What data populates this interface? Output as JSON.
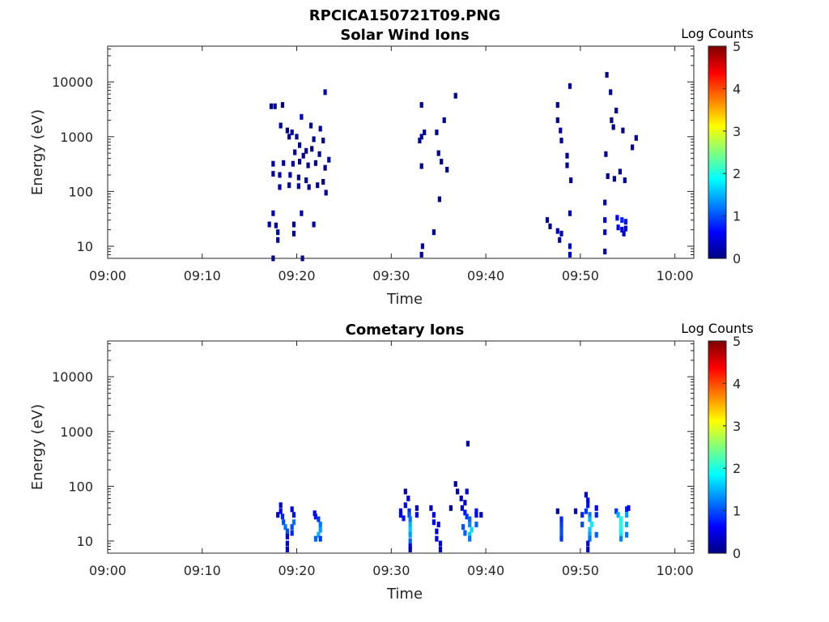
{
  "figure": {
    "title": "RPCICA150721T09.PNG"
  },
  "colors": {
    "colormap": [
      "#00007f",
      "#0000ff",
      "#007fff",
      "#00ffff",
      "#7fff7f",
      "#ffff00",
      "#ff7f00",
      "#ff0000",
      "#7f0000"
    ],
    "axis": "#262626",
    "background": "#ffffff"
  },
  "chart_data": [
    {
      "type": "heatmap",
      "title": "Solar Wind Ions",
      "xlabel": "Time",
      "ylabel": "Energy (eV)",
      "x_ticks": [
        "09:00",
        "09:10",
        "09:20",
        "09:30",
        "09:40",
        "09:50",
        "10:00"
      ],
      "y_ticks": [
        "10",
        "100",
        "1000",
        "10000"
      ],
      "y_scale": "log",
      "xlim_minutes": [
        0,
        62
      ],
      "ylim": [
        6,
        45000
      ],
      "colorbar": {
        "title": "Log Counts",
        "ticks": [
          "0",
          "1",
          "2",
          "3",
          "4",
          "5"
        ],
        "range": [
          0,
          5
        ]
      },
      "cells": [
        [
          17.3,
          3600,
          0.1
        ],
        [
          17.7,
          3600,
          0.1
        ],
        [
          18.5,
          3800,
          0.1
        ],
        [
          20.5,
          2300,
          0.3
        ],
        [
          23.0,
          6500,
          0.2
        ],
        [
          18.3,
          1600,
          0.1
        ],
        [
          19.0,
          1300,
          0.1
        ],
        [
          19.5,
          1200,
          0.2
        ],
        [
          20.0,
          1000,
          0.1
        ],
        [
          21.5,
          1600,
          0.1
        ],
        [
          22.5,
          1400,
          0.1
        ],
        [
          19.2,
          1000,
          0.1
        ],
        [
          20.3,
          700,
          0.1
        ],
        [
          21.0,
          550,
          0.1
        ],
        [
          21.8,
          900,
          0.1
        ],
        [
          22.8,
          850,
          0.1
        ],
        [
          19.8,
          520,
          0.1
        ],
        [
          20.7,
          450,
          0.1
        ],
        [
          21.6,
          600,
          0.1
        ],
        [
          22.4,
          480,
          0.1
        ],
        [
          23.4,
          380,
          0.1
        ],
        [
          17.5,
          320,
          0.2
        ],
        [
          18.6,
          330,
          0.2
        ],
        [
          19.6,
          320,
          0.2
        ],
        [
          20.3,
          350,
          0.1
        ],
        [
          21.2,
          300,
          0.1
        ],
        [
          22.0,
          330,
          0.1
        ],
        [
          23.0,
          270,
          0.1
        ],
        [
          17.5,
          210,
          0.1
        ],
        [
          18.2,
          200,
          0.2
        ],
        [
          19.3,
          200,
          0.1
        ],
        [
          20.2,
          180,
          0.1
        ],
        [
          21.0,
          160,
          0.1
        ],
        [
          22.8,
          150,
          0.1
        ],
        [
          18.2,
          120,
          0.2
        ],
        [
          19.2,
          130,
          0.1
        ],
        [
          20.2,
          125,
          0.2
        ],
        [
          21.3,
          120,
          0.2
        ],
        [
          22.2,
          130,
          0.1
        ],
        [
          23.1,
          95,
          0.2
        ],
        [
          17.5,
          40,
          0.3
        ],
        [
          20.5,
          40,
          0.2
        ],
        [
          17.1,
          25,
          0.2
        ],
        [
          17.8,
          24,
          0.2
        ],
        [
          19.7,
          25,
          0.2
        ],
        [
          21.8,
          25,
          0.2
        ],
        [
          18.0,
          18,
          0.2
        ],
        [
          18.0,
          13,
          0.2
        ],
        [
          19.7,
          17,
          0.2
        ],
        [
          17.5,
          6,
          0.1
        ],
        [
          20.6,
          6,
          0.2
        ],
        [
          33.2,
          3800,
          0.1
        ],
        [
          33.5,
          1200,
          0.1
        ],
        [
          33.0,
          850,
          0.1
        ],
        [
          33.2,
          1000,
          0.2
        ],
        [
          34.8,
          1200,
          0.1
        ],
        [
          35.0,
          500,
          0.1
        ],
        [
          35.3,
          350,
          0.1
        ],
        [
          35.9,
          250,
          0.1
        ],
        [
          33.2,
          290,
          0.1
        ],
        [
          36.8,
          5600,
          0.1
        ],
        [
          35.6,
          2000,
          0.1
        ],
        [
          35.1,
          72,
          0.1
        ],
        [
          33.3,
          10,
          0.2
        ],
        [
          34.5,
          18,
          0.1
        ],
        [
          33.2,
          7,
          0.2
        ],
        [
          47.6,
          3800,
          0.1
        ],
        [
          48.9,
          8400,
          0.1
        ],
        [
          47.6,
          2000,
          0.1
        ],
        [
          47.9,
          1300,
          0.1
        ],
        [
          48.0,
          850,
          0.1
        ],
        [
          48.6,
          450,
          0.1
        ],
        [
          48.6,
          300,
          0.1
        ],
        [
          49.0,
          160,
          0.1
        ],
        [
          48.9,
          40,
          0.2
        ],
        [
          46.5,
          30,
          0.1
        ],
        [
          46.8,
          23,
          0.1
        ],
        [
          47.6,
          19,
          0.3
        ],
        [
          48.0,
          17,
          0.3
        ],
        [
          47.8,
          13,
          0.2
        ],
        [
          48.9,
          10,
          0.3
        ],
        [
          48.9,
          7,
          0.3
        ],
        [
          52.8,
          13500,
          0.1
        ],
        [
          53.2,
          6500,
          0.1
        ],
        [
          53.8,
          3000,
          0.1
        ],
        [
          53.3,
          2000,
          0.1
        ],
        [
          53.5,
          1500,
          0.1
        ],
        [
          54.5,
          1300,
          0.1
        ],
        [
          55.9,
          950,
          0.1
        ],
        [
          55.5,
          640,
          0.1
        ],
        [
          52.7,
          480,
          0.1
        ],
        [
          52.9,
          190,
          0.1
        ],
        [
          53.6,
          170,
          0.1
        ],
        [
          54.2,
          230,
          0.1
        ],
        [
          54.7,
          160,
          0.1
        ],
        [
          52.6,
          63,
          0.2
        ],
        [
          52.6,
          30,
          0.4
        ],
        [
          53.9,
          33,
          0.6
        ],
        [
          54.4,
          30,
          0.8
        ],
        [
          54.8,
          28,
          0.7
        ],
        [
          54.0,
          22,
          0.5
        ],
        [
          54.4,
          20,
          0.4
        ],
        [
          54.8,
          21,
          0.5
        ],
        [
          54.6,
          17,
          0.4
        ],
        [
          52.6,
          18,
          0.3
        ],
        [
          52.6,
          8,
          0.2
        ]
      ]
    },
    {
      "type": "heatmap",
      "title": "Cometary Ions",
      "xlabel": "Time",
      "ylabel": "Energy (eV)",
      "x_ticks": [
        "09:00",
        "09:10",
        "09:20",
        "09:30",
        "09:40",
        "09:50",
        "10:00"
      ],
      "y_ticks": [
        "10",
        "100",
        "1000",
        "10000"
      ],
      "y_scale": "log",
      "xlim_minutes": [
        0,
        62
      ],
      "ylim": [
        6,
        45000
      ],
      "colorbar": {
        "title": "Log Counts",
        "ticks": [
          "0",
          "1",
          "2",
          "3",
          "4",
          "5"
        ],
        "range": [
          0,
          5
        ]
      },
      "cells": [
        [
          18.3,
          45,
          0.4
        ],
        [
          18.3,
          35,
          0.6
        ],
        [
          18.5,
          28,
          0.8
        ],
        [
          18.6,
          22,
          1.0
        ],
        [
          18.8,
          18,
          1.2
        ],
        [
          19.0,
          15,
          1.0
        ],
        [
          19.0,
          12,
          0.6
        ],
        [
          19.0,
          9,
          0.5
        ],
        [
          19.0,
          7,
          0.5
        ],
        [
          19.5,
          38,
          0.5
        ],
        [
          19.7,
          30,
          0.7
        ],
        [
          19.7,
          22,
          1.2
        ],
        [
          19.5,
          18,
          1.0
        ],
        [
          19.5,
          14,
          0.8
        ],
        [
          18.0,
          30,
          0.4
        ],
        [
          21.9,
          32,
          0.5
        ],
        [
          22.0,
          28,
          0.7
        ],
        [
          22.3,
          25,
          0.9
        ],
        [
          22.5,
          20,
          1.2
        ],
        [
          22.5,
          16,
          1.4
        ],
        [
          22.3,
          13,
          1.5
        ],
        [
          22.0,
          11,
          1.1
        ],
        [
          22.5,
          11,
          0.9
        ],
        [
          31.5,
          80,
          0.2
        ],
        [
          31.8,
          60,
          0.4
        ],
        [
          31.5,
          45,
          0.6
        ],
        [
          31.9,
          35,
          0.8
        ],
        [
          31.9,
          30,
          1.0
        ],
        [
          32.0,
          25,
          1.2
        ],
        [
          32.0,
          20,
          1.5
        ],
        [
          32.0,
          16,
          1.6
        ],
        [
          32.0,
          13,
          1.4
        ],
        [
          32.0,
          10,
          1.1
        ],
        [
          32.0,
          8,
          0.5
        ],
        [
          32.0,
          7,
          0.3
        ],
        [
          31.0,
          35,
          0.5
        ],
        [
          31.0,
          30,
          0.6
        ],
        [
          31.3,
          26,
          0.7
        ],
        [
          32.7,
          40,
          0.4
        ],
        [
          32.7,
          30,
          0.6
        ],
        [
          34.2,
          40,
          0.3
        ],
        [
          34.5,
          30,
          0.5
        ],
        [
          34.5,
          22,
          0.6
        ],
        [
          35.0,
          20,
          0.5
        ],
        [
          34.8,
          15,
          0.5
        ],
        [
          34.8,
          11,
          0.5
        ],
        [
          35.2,
          9,
          0.4
        ],
        [
          35.2,
          7,
          0.3
        ],
        [
          36.8,
          110,
          0.2
        ],
        [
          37.0,
          80,
          0.3
        ],
        [
          37.4,
          60,
          0.3
        ],
        [
          37.8,
          50,
          0.3
        ],
        [
          38.0,
          80,
          0.4
        ],
        [
          37.5,
          40,
          0.5
        ],
        [
          37.8,
          33,
          0.7
        ],
        [
          38.0,
          28,
          0.9
        ],
        [
          38.3,
          25,
          1.1
        ],
        [
          38.3,
          20,
          1.3
        ],
        [
          38.5,
          16,
          1.7
        ],
        [
          38.3,
          13,
          1.6
        ],
        [
          38.3,
          11,
          1.2
        ],
        [
          37.6,
          18,
          1.0
        ],
        [
          37.8,
          14,
          1.1
        ],
        [
          39.0,
          35,
          0.7
        ],
        [
          39.0,
          30,
          0.6
        ],
        [
          39.0,
          20,
          1.1
        ],
        [
          39.5,
          30,
          0.3
        ],
        [
          38.1,
          600,
          0.2
        ],
        [
          36.3,
          40,
          0.2
        ],
        [
          47.6,
          35,
          0.2
        ],
        [
          48.0,
          25,
          0.8
        ],
        [
          48.0,
          20,
          0.9
        ],
        [
          48.0,
          16,
          1.0
        ],
        [
          48.0,
          13,
          1.0
        ],
        [
          48.0,
          11,
          0.9
        ],
        [
          49.5,
          35,
          0.3
        ],
        [
          50.6,
          70,
          0.3
        ],
        [
          50.8,
          55,
          0.5
        ],
        [
          50.8,
          45,
          0.7
        ],
        [
          50.6,
          35,
          0.9
        ],
        [
          51.0,
          30,
          1.2
        ],
        [
          51.0,
          25,
          1.5
        ],
        [
          51.2,
          20,
          1.8
        ],
        [
          51.0,
          16,
          1.6
        ],
        [
          51.0,
          13,
          1.4
        ],
        [
          51.0,
          11,
          1.2
        ],
        [
          50.8,
          9,
          0.4
        ],
        [
          50.8,
          7,
          0.3
        ],
        [
          50.2,
          30,
          0.8
        ],
        [
          50.2,
          20,
          1.0
        ],
        [
          51.7,
          40,
          0.6
        ],
        [
          51.7,
          30,
          0.8
        ],
        [
          51.7,
          13,
          1.1
        ],
        [
          53.8,
          35,
          0.9
        ],
        [
          54.0,
          30,
          1.5
        ],
        [
          54.3,
          25,
          1.9
        ],
        [
          54.3,
          20,
          2.0
        ],
        [
          54.3,
          16,
          1.9
        ],
        [
          54.3,
          13,
          1.8
        ],
        [
          54.3,
          11,
          1.3
        ],
        [
          54.9,
          38,
          0.8
        ],
        [
          54.9,
          30,
          1.4
        ],
        [
          55.1,
          40,
          0.5
        ],
        [
          54.9,
          20,
          1.5
        ],
        [
          54.9,
          13,
          1.2
        ]
      ]
    }
  ]
}
